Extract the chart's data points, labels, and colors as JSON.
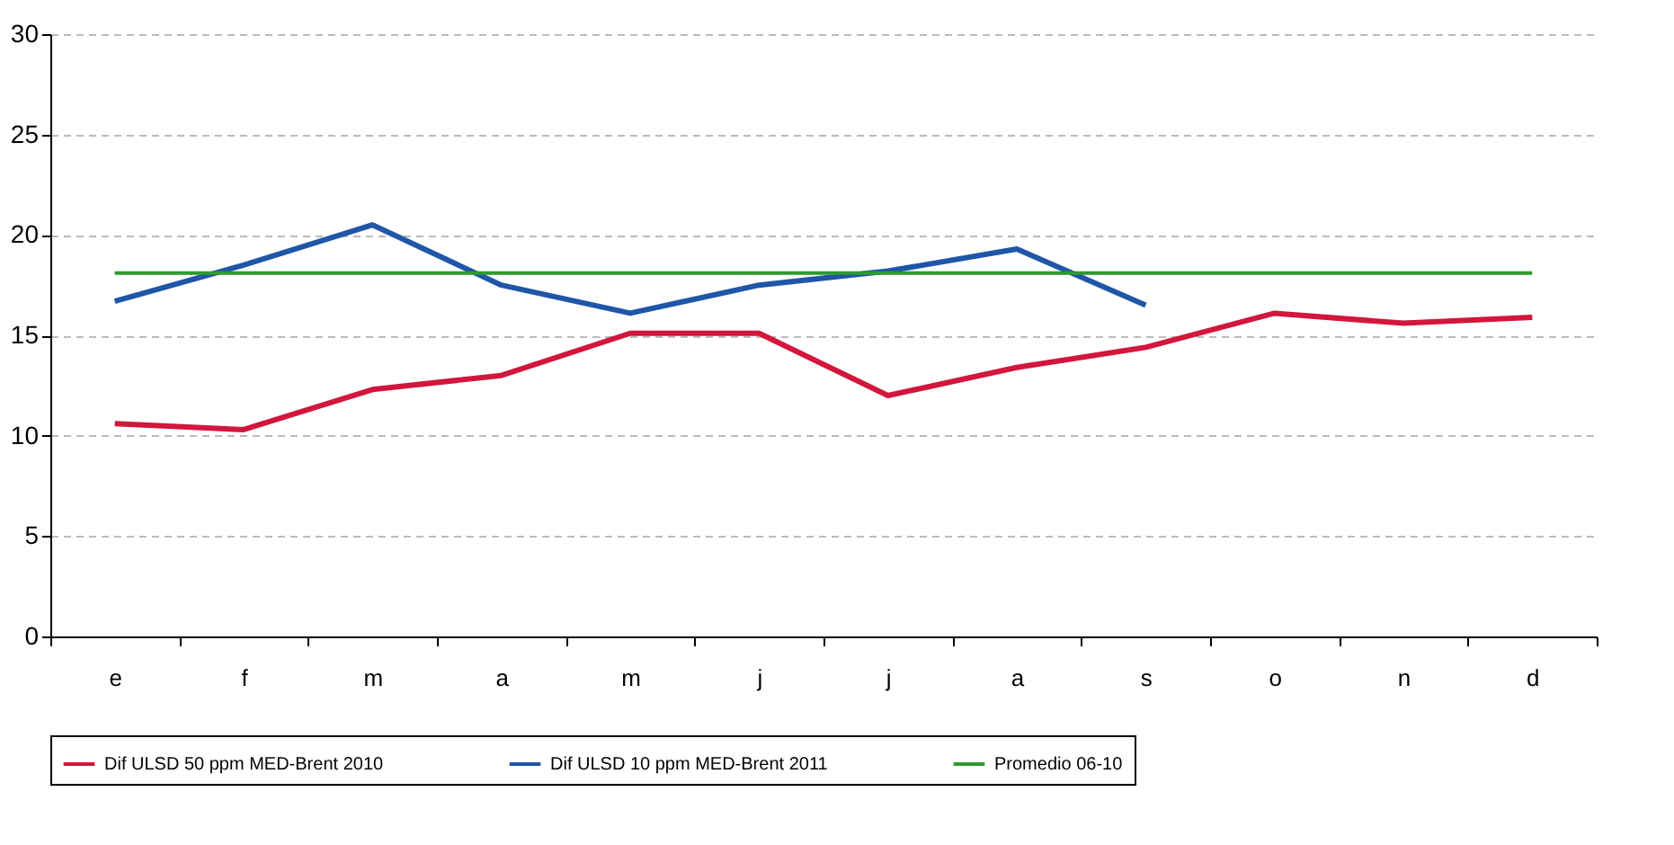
{
  "chart_data": {
    "type": "line",
    "categories": [
      "e",
      "f",
      "m",
      "a",
      "m",
      "j",
      "j",
      "a",
      "s",
      "o",
      "n",
      "d"
    ],
    "series": [
      {
        "name": "Dif ULSD 50  ppm MED-Brent  2010",
        "color": "#d2163c",
        "values": [
          10.6,
          10.3,
          12.3,
          13.0,
          15.1,
          15.1,
          12.0,
          13.4,
          14.4,
          16.1,
          15.6,
          15.9
        ]
      },
      {
        "name": "Dif ULSD 10  ppm MED-Brent  2011",
        "color": "#1f56a8",
        "values": [
          16.7,
          18.5,
          20.5,
          17.5,
          16.1,
          17.5,
          18.2,
          19.3,
          16.5,
          null,
          null,
          null
        ]
      },
      {
        "name": "Promedio 06-10",
        "color": "#2e9a2e",
        "values": [
          18.1,
          18.1,
          18.1,
          18.1,
          18.1,
          18.1,
          18.1,
          18.1,
          18.1,
          18.1,
          18.1,
          18.1
        ]
      }
    ],
    "ylim": [
      0,
      30
    ],
    "yticks": [
      0,
      5,
      10,
      15,
      20,
      25,
      30
    ],
    "grid": "y",
    "legend": "bottom",
    "marker": "none",
    "line_style": "solid"
  }
}
